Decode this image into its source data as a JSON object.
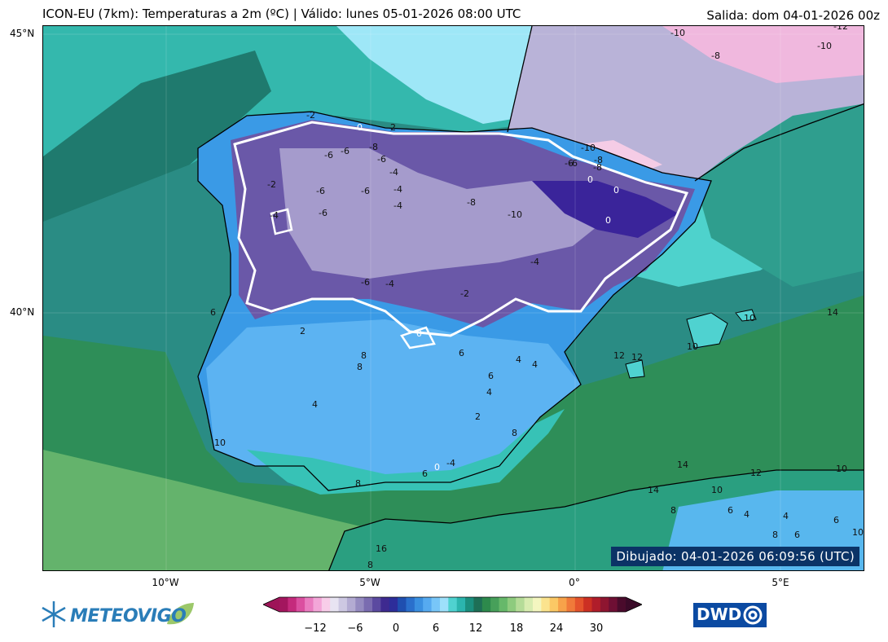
{
  "header": {
    "title": "ICON-EU (7km): Temperaturas a 2m (ºC) | Válido: lunes 05-01-2026 08:00 UTC",
    "run": "Salida: dom 04-01-2026 00z"
  },
  "axes": {
    "lat_labels": [
      "45°N",
      "40°N"
    ],
    "lon_labels": [
      "10°W",
      "5°W",
      "0°",
      "5°E"
    ]
  },
  "contour_labels": [
    "-2",
    "0",
    "-2",
    "-6",
    "-6",
    "-8",
    "-6",
    "-4",
    "-4",
    "-6",
    "-6",
    "-2",
    "-4",
    "-6",
    "-8",
    "-10",
    "-6",
    "-8",
    "0",
    "0",
    "0",
    "-4",
    "-6",
    "-2",
    "-4",
    "6",
    "2",
    "0",
    "8",
    "8",
    "4",
    "6",
    "4",
    "4",
    "6",
    "4",
    "2",
    "8",
    "0",
    "-4",
    "6",
    "10",
    "8",
    "10",
    "10",
    "12",
    "12",
    "14",
    "14",
    "12",
    "10",
    "14",
    "10",
    "8",
    "6",
    "4",
    "6",
    "8",
    "6",
    "10",
    "16",
    "8",
    "4",
    "-10",
    "-8",
    "-6",
    "-4",
    "-10",
    "-8",
    "-12",
    "-10"
  ],
  "drawn_stamp": "Dibujado: 04-01-2026 06:09:56 (UTC)",
  "colorbar": {
    "ticks": [
      "−12",
      "−6",
      "0",
      "6",
      "12",
      "18",
      "24",
      "30"
    ],
    "colors": [
      "#a3165e",
      "#c42a7c",
      "#db4fa0",
      "#ea7cc0",
      "#f3a6d8",
      "#f8cde9",
      "#e8e4f2",
      "#cdc8e2",
      "#b3abd2",
      "#958bc0",
      "#7a6cb0",
      "#5b4aa0",
      "#3e2a90",
      "#2d2d9a",
      "#1f4fb0",
      "#2a6fcc",
      "#3a8fe0",
      "#56aaf0",
      "#78c6f8",
      "#9ee0fb",
      "#4fd2d0",
      "#2bb5ae",
      "#1b8f7e",
      "#1e6f56",
      "#2d8a4c",
      "#47a05a",
      "#66b86a",
      "#8ecb7e",
      "#b5dc98",
      "#d8ecb0",
      "#f4f6c0",
      "#fbe38e",
      "#fbc865",
      "#f7a24a",
      "#f07a3a",
      "#e4532c",
      "#cc3023",
      "#b01d2a",
      "#8e1530",
      "#6e0f34",
      "#4a0b2c"
    ]
  },
  "logos": {
    "left": "METEOVIGO",
    "right": "DWD"
  }
}
